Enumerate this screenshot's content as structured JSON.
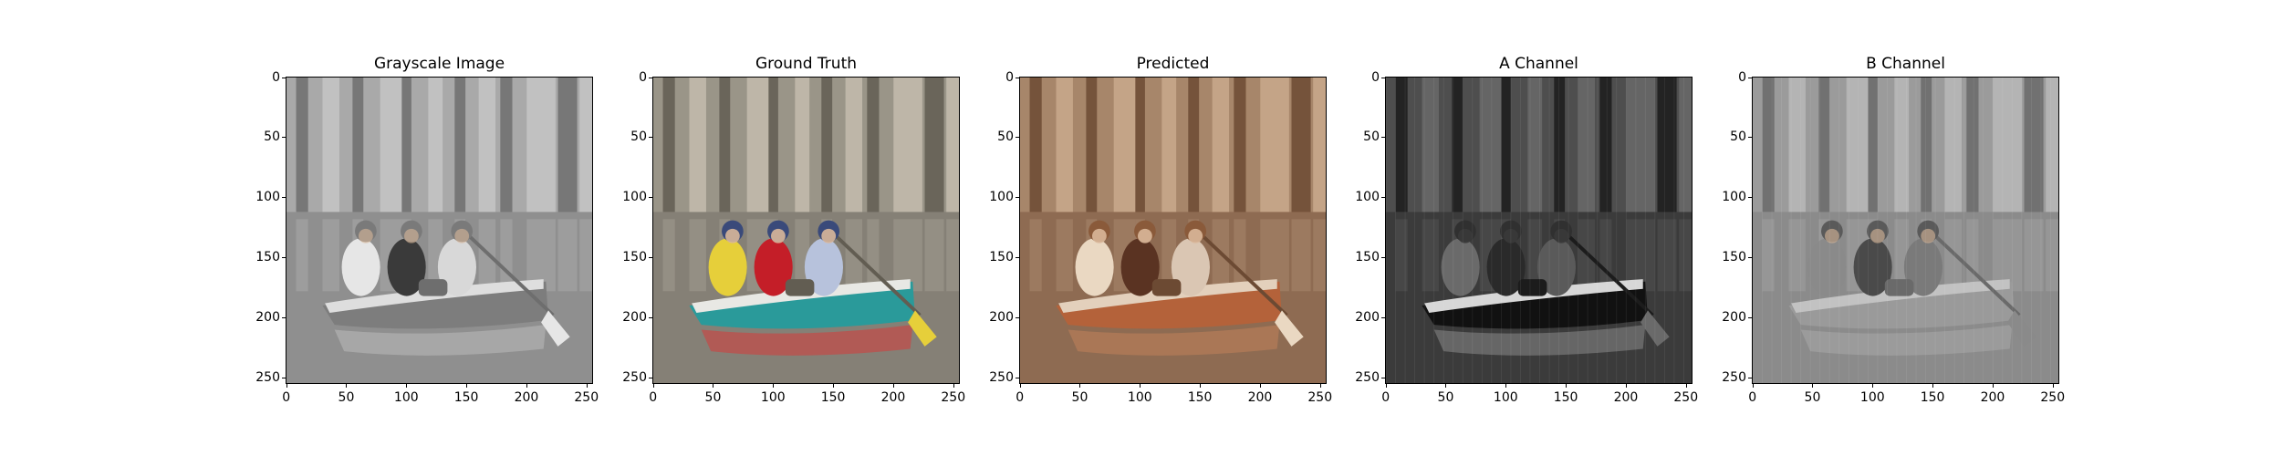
{
  "figure": {
    "panels": [
      {
        "id": "grayscale",
        "title": "Grayscale Image",
        "mode": "gray"
      },
      {
        "id": "ground-truth",
        "title": "Ground Truth",
        "mode": "color"
      },
      {
        "id": "predicted",
        "title": "Predicted",
        "mode": "sepia"
      },
      {
        "id": "a-channel",
        "title": "A Channel",
        "mode": "achannel"
      },
      {
        "id": "b-channel",
        "title": "B Channel",
        "mode": "bchannel"
      }
    ],
    "y_ticks": [
      "0",
      "50",
      "100",
      "150",
      "200",
      "250"
    ],
    "x_ticks": [
      "0",
      "50",
      "100",
      "150",
      "200",
      "250"
    ]
  }
}
